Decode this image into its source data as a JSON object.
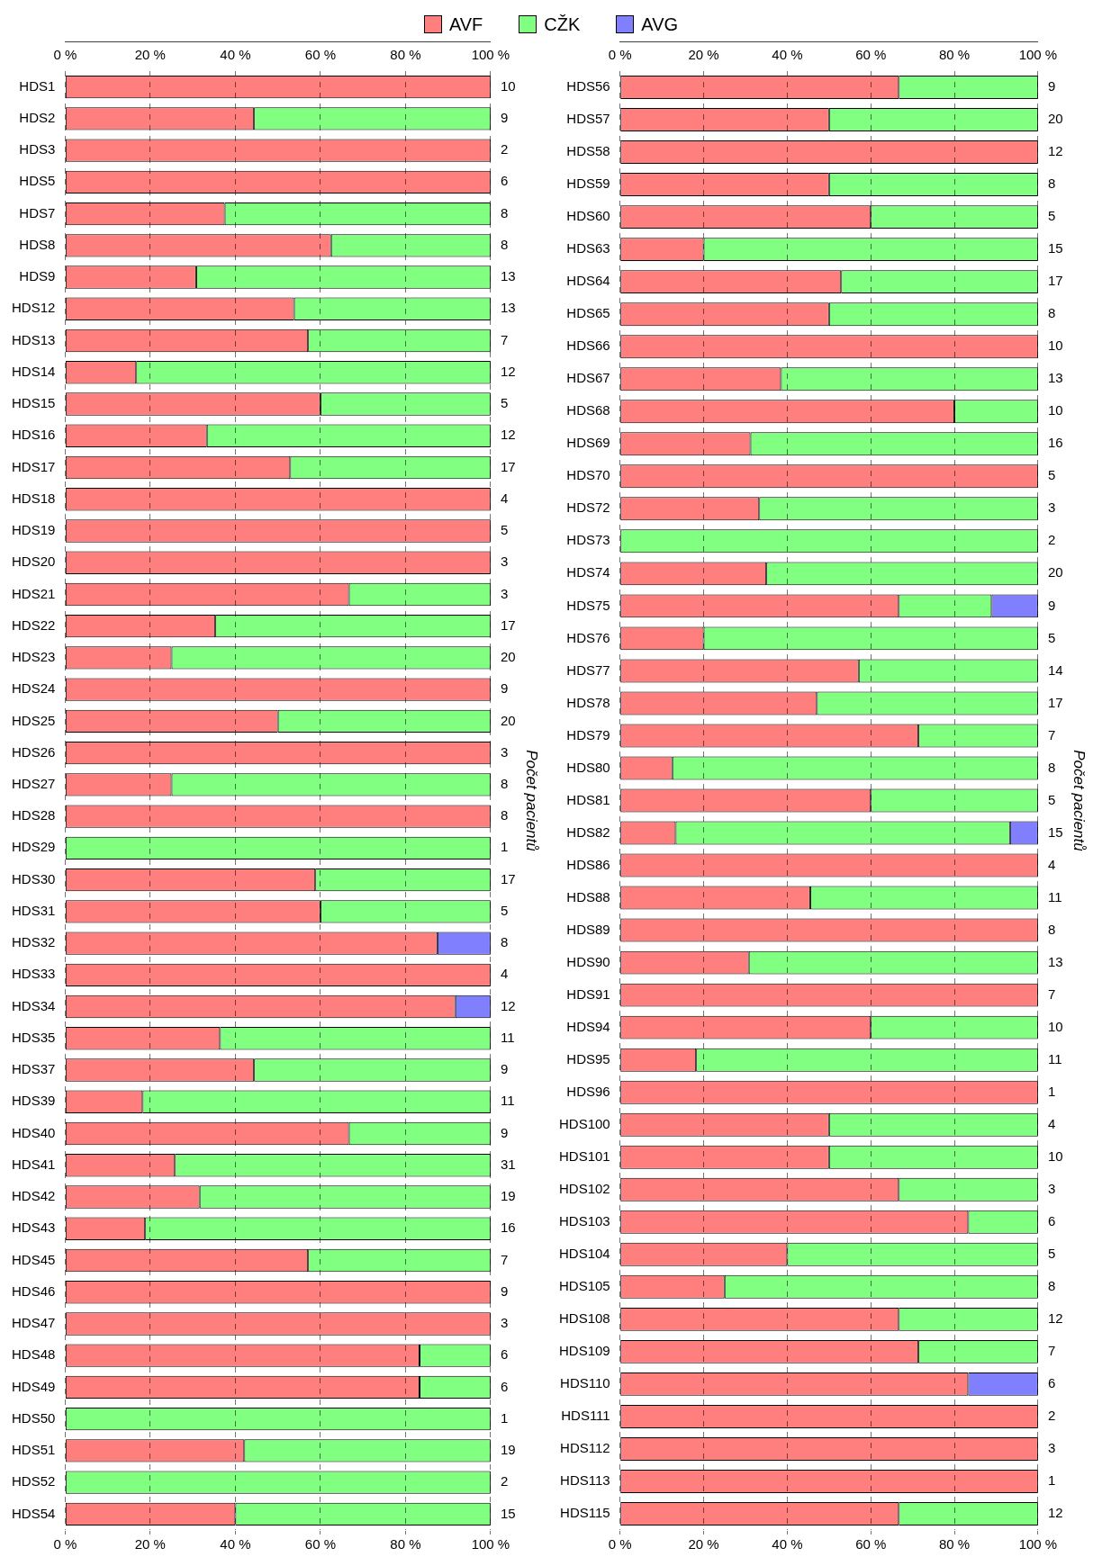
{
  "chart_data": [
    {
      "type": "bar",
      "orientation": "horizontal",
      "stacked": true,
      "grid": "x",
      "legend": "top",
      "y2label": "Počet pacientů",
      "xlim": [
        0,
        100
      ],
      "xticks": [
        {
          "value": 0,
          "label": "0 %"
        },
        {
          "value": 20,
          "label": "20 %"
        },
        {
          "value": 40,
          "label": "40 %"
        },
        {
          "value": 60,
          "label": "60 %"
        },
        {
          "value": 80,
          "label": "80 %"
        },
        {
          "value": 100,
          "label": "100 %"
        }
      ],
      "x2lim": [
        0,
        100
      ],
      "x2ticks": [
        {
          "value": 0,
          "label": "0 %"
        },
        {
          "value": 20,
          "label": "20 %"
        },
        {
          "value": 40,
          "label": "40 %"
        },
        {
          "value": 60,
          "label": "60 %"
        },
        {
          "value": 80,
          "label": "80 %"
        },
        {
          "value": 100,
          "label": "100 %"
        }
      ],
      "categories": [
        "HDS1",
        "HDS2",
        "HDS3",
        "HDS5",
        "HDS7",
        "HDS8",
        "HDS9",
        "HDS12",
        "HDS13",
        "HDS14",
        "HDS15",
        "HDS16",
        "HDS17",
        "HDS18",
        "HDS19",
        "HDS20",
        "HDS21",
        "HDS22",
        "HDS23",
        "HDS24",
        "HDS25",
        "HDS26",
        "HDS27",
        "HDS28",
        "HDS29",
        "HDS30",
        "HDS31",
        "HDS32",
        "HDS33",
        "HDS34",
        "HDS35",
        "HDS37",
        "HDS39",
        "HDS40",
        "HDS41",
        "HDS42",
        "HDS43",
        "HDS45",
        "HDS46",
        "HDS47",
        "HDS48",
        "HDS49",
        "HDS50",
        "HDS51",
        "HDS52",
        "HDS54"
      ],
      "y2_categories": [
        "10",
        "9",
        "2",
        "6",
        "8",
        "8",
        "13",
        "13",
        "7",
        "12",
        "5",
        "12",
        "17",
        "4",
        "5",
        "3",
        "3",
        "17",
        "20",
        "9",
        "20",
        "3",
        "8",
        "8",
        "1",
        "17",
        "5",
        "8",
        "4",
        "12",
        "11",
        "9",
        "11",
        "9",
        "31",
        "19",
        "16",
        "7",
        "9",
        "3",
        "6",
        "6",
        "1",
        "19",
        "2",
        "15"
      ],
      "series": [
        {
          "name": "AVF",
          "color": "#ff7f7f",
          "values": [
            100,
            44.4,
            100,
            100,
            37.5,
            62.5,
            30.8,
            53.8,
            57.1,
            16.7,
            60,
            33.3,
            52.9,
            100,
            100,
            100,
            66.7,
            35.3,
            25,
            100,
            50,
            100,
            25,
            100,
            0,
            58.8,
            60,
            87.5,
            100,
            91.7,
            36.4,
            44.4,
            18.2,
            66.7,
            25.8,
            31.6,
            18.8,
            57.1,
            100,
            100,
            83.3,
            83.3,
            0,
            42.1,
            0,
            40
          ]
        },
        {
          "name": "CŽK",
          "color": "#80ff80",
          "values": [
            0,
            55.6,
            0,
            0,
            62.5,
            37.5,
            69.2,
            46.2,
            42.9,
            83.3,
            40,
            66.7,
            47.1,
            0,
            0,
            0,
            33.3,
            64.7,
            75,
            0,
            50,
            0,
            75,
            0,
            100,
            41.2,
            40,
            0,
            0,
            0,
            63.6,
            55.6,
            81.8,
            33.3,
            74.2,
            68.4,
            81.2,
            42.9,
            0,
            0,
            16.7,
            16.7,
            100,
            57.9,
            100,
            60
          ]
        },
        {
          "name": "AVG",
          "color": "#8080ff",
          "values": [
            0,
            0,
            0,
            0,
            0,
            0,
            0,
            0,
            0,
            0,
            0,
            0,
            0,
            0,
            0,
            0,
            0,
            0,
            0,
            0,
            0,
            0,
            0,
            0,
            0,
            0,
            0,
            12.5,
            0,
            8.3,
            0,
            0,
            0,
            0,
            0,
            0,
            0,
            0,
            0,
            0,
            0,
            0,
            0,
            0,
            0,
            0
          ]
        }
      ]
    },
    {
      "type": "bar",
      "orientation": "horizontal",
      "stacked": true,
      "grid": "x",
      "y2label": "Počet pacientů",
      "xlim": [
        0,
        100
      ],
      "xticks": [
        {
          "value": 0,
          "label": "0 %"
        },
        {
          "value": 20,
          "label": "20 %"
        },
        {
          "value": 40,
          "label": "40 %"
        },
        {
          "value": 60,
          "label": "60 %"
        },
        {
          "value": 80,
          "label": "80 %"
        },
        {
          "value": 100,
          "label": "100 %"
        }
      ],
      "x2lim": [
        0,
        100
      ],
      "x2ticks": [
        {
          "value": 0,
          "label": "0 %"
        },
        {
          "value": 20,
          "label": "20 %"
        },
        {
          "value": 40,
          "label": "40 %"
        },
        {
          "value": 60,
          "label": "60 %"
        },
        {
          "value": 80,
          "label": "80 %"
        },
        {
          "value": 100,
          "label": "100 %"
        }
      ],
      "categories": [
        "HDS56",
        "HDS57",
        "HDS58",
        "HDS59",
        "HDS60",
        "HDS63",
        "HDS64",
        "HDS65",
        "HDS66",
        "HDS67",
        "HDS68",
        "HDS69",
        "HDS70",
        "HDS72",
        "HDS73",
        "HDS74",
        "HDS75",
        "HDS76",
        "HDS77",
        "HDS78",
        "HDS79",
        "HDS80",
        "HDS81",
        "HDS82",
        "HDS86",
        "HDS88",
        "HDS89",
        "HDS90",
        "HDS91",
        "HDS94",
        "HDS95",
        "HDS96",
        "HDS100",
        "HDS101",
        "HDS102",
        "HDS103",
        "HDS104",
        "HDS105",
        "HDS108",
        "HDS109",
        "HDS110",
        "HDS111",
        "HDS112",
        "HDS113",
        "HDS115"
      ],
      "y2_categories": [
        "9",
        "20",
        "12",
        "8",
        "5",
        "15",
        "17",
        "8",
        "10",
        "13",
        "10",
        "16",
        "5",
        "3",
        "2",
        "20",
        "9",
        "5",
        "14",
        "17",
        "7",
        "8",
        "5",
        "15",
        "4",
        "11",
        "8",
        "13",
        "7",
        "10",
        "11",
        "1",
        "4",
        "10",
        "3",
        "6",
        "5",
        "8",
        "12",
        "7",
        "6",
        "2",
        "3",
        "1",
        "12"
      ],
      "series": [
        {
          "color": "#ff7f7f",
          "values": [
            66.7,
            50,
            100,
            50,
            60,
            20,
            52.9,
            50,
            100,
            38.5,
            80,
            31.2,
            100,
            33.3,
            0,
            35,
            66.7,
            20,
            57.1,
            47.1,
            71.4,
            12.5,
            60,
            13.3,
            100,
            45.5,
            100,
            30.8,
            100,
            60,
            18.2,
            100,
            50,
            50,
            66.7,
            83.3,
            40,
            25,
            66.7,
            71.4,
            83.3,
            100,
            100,
            100,
            66.7
          ]
        },
        {
          "color": "#80ff80",
          "values": [
            33.3,
            50,
            0,
            50,
            40,
            80,
            47.1,
            50,
            0,
            61.5,
            20,
            68.8,
            0,
            66.7,
            100,
            65,
            22.2,
            80,
            42.9,
            52.9,
            28.6,
            87.5,
            40,
            80,
            0,
            54.5,
            0,
            69.2,
            0,
            40,
            81.8,
            0,
            50,
            50,
            33.3,
            16.7,
            60,
            75,
            33.3,
            28.6,
            0,
            0,
            0,
            0,
            33.3
          ]
        },
        {
          "color": "#8080ff",
          "values": [
            0,
            0,
            0,
            0,
            0,
            0,
            0,
            0,
            0,
            0,
            0,
            0,
            0,
            0,
            0,
            0,
            11.1,
            0,
            0,
            0,
            0,
            0,
            0,
            6.7,
            0,
            0,
            0,
            0,
            0,
            0,
            0,
            0,
            0,
            0,
            0,
            0,
            0,
            0,
            0,
            0,
            16.7,
            0,
            0,
            0,
            0
          ]
        }
      ]
    }
  ]
}
